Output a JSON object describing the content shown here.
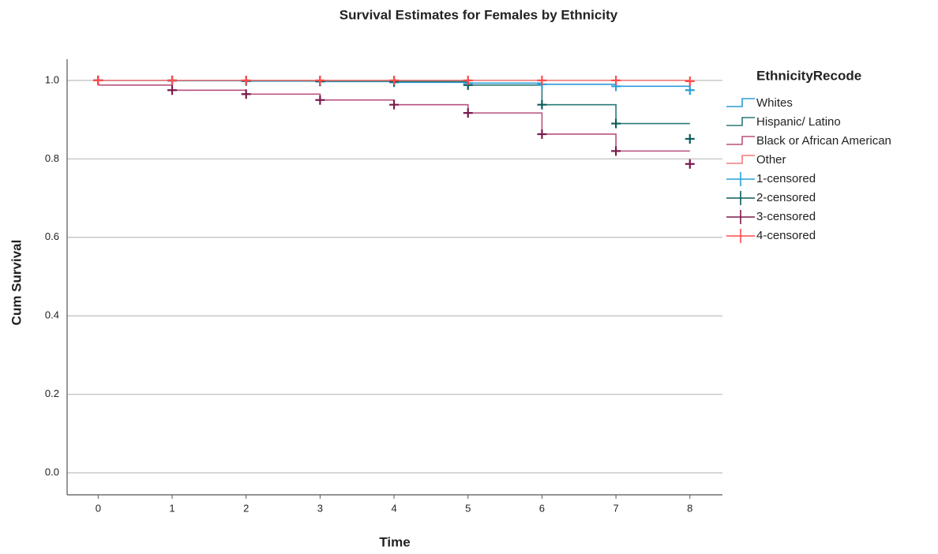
{
  "chart_data": {
    "type": "step",
    "title": "Survival Estimates for Females by Ethnicity",
    "x_label": "Time",
    "y_label": "Cum Survival",
    "legend_title": "EthnicityRecode",
    "legend_position": "right",
    "x": [
      0,
      1,
      2,
      3,
      4,
      5,
      6,
      7,
      8
    ],
    "xlim": [
      -0.42,
      8.44
    ],
    "xticks": [
      0,
      1,
      2,
      3,
      4,
      5,
      6,
      7,
      8
    ],
    "ylim": [
      -0.056,
      1.054
    ],
    "yticks": [
      {
        "value": 0,
        "label": "0.0"
      },
      0.2,
      0.4,
      0.6,
      0.8,
      {
        "value": 1,
        "label": "1.0"
      }
    ],
    "grid": true,
    "series": [
      {
        "name": "Whites",
        "kind": "line",
        "color": "#2b9bd8",
        "values": [
          1.0,
          0.999,
          0.998,
          0.997,
          0.995,
          0.993,
          0.99,
          0.985,
          0.985
        ]
      },
      {
        "name": "Hispanic/ Latino",
        "kind": "line",
        "color": "#2a7878",
        "values": [
          1.0,
          1.0,
          0.999,
          0.998,
          0.997,
          0.988,
          0.938,
          0.89,
          0.89
        ]
      },
      {
        "name": "Black or African American",
        "kind": "line",
        "color": "#b8507e",
        "values": [
          0.988,
          0.975,
          0.965,
          0.95,
          0.938,
          0.917,
          0.863,
          0.82,
          0.82
        ]
      },
      {
        "name": "Other",
        "kind": "line",
        "color": "#f07a7a",
        "values": [
          1.0,
          1.0,
          1.0,
          1.0,
          1.0,
          1.0,
          1.0,
          1.0,
          0.998
        ]
      },
      {
        "name": "1-censored",
        "kind": "censored",
        "color": "#2a9fd6",
        "values": [
          1.0,
          0.999,
          0.998,
          0.997,
          0.995,
          0.993,
          0.99,
          0.985,
          0.975
        ]
      },
      {
        "name": "2-censored",
        "kind": "censored",
        "color": "#0b5c5c",
        "values": [
          1.0,
          1.0,
          0.999,
          0.998,
          0.997,
          0.988,
          0.938,
          0.89,
          0.851
        ]
      },
      {
        "name": "3-censored",
        "kind": "censored",
        "color": "#7a1a4c",
        "values": [
          1.0,
          0.975,
          0.965,
          0.95,
          0.938,
          0.917,
          0.863,
          0.82,
          0.787
        ]
      },
      {
        "name": "4-censored",
        "kind": "censored",
        "color": "#ff4b4b",
        "values": [
          1.0,
          1.0,
          1.0,
          1.0,
          1.0,
          1.0,
          1.0,
          1.0,
          0.998
        ]
      }
    ]
  }
}
